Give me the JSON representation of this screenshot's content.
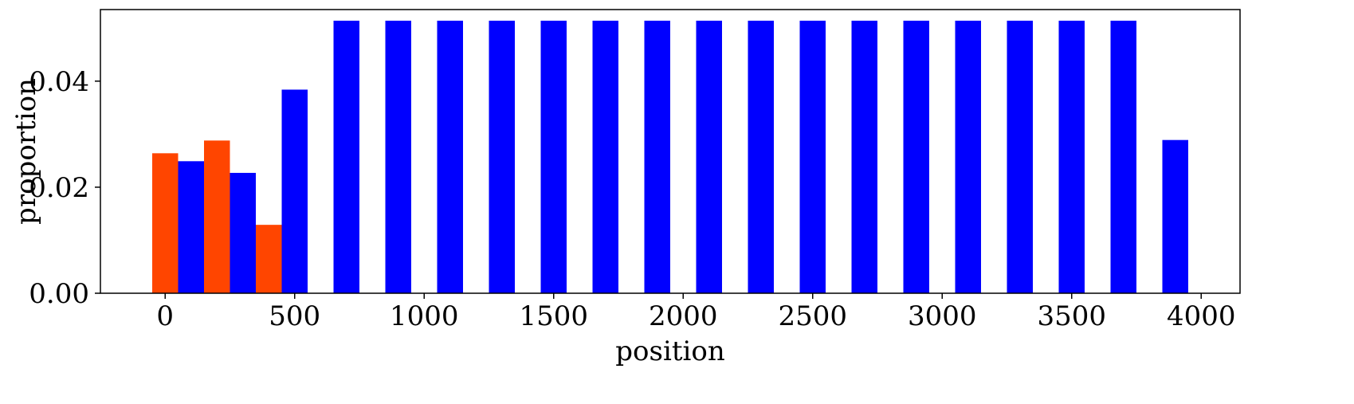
{
  "chart_data": {
    "type": "bar",
    "xlabel": "position",
    "ylabel": "proportion",
    "xlim": [
      -250,
      4150
    ],
    "ylim": [
      0,
      0.0535
    ],
    "xticks": [
      0,
      500,
      1000,
      1500,
      2000,
      2500,
      3000,
      3500,
      4000
    ],
    "xtick_labels": [
      "0",
      "500",
      "1000",
      "1500",
      "2000",
      "2500",
      "3000",
      "3500",
      "4000"
    ],
    "yticks": [
      0.0,
      0.02,
      0.04
    ],
    "ytick_labels": [
      "0.00",
      "0.02",
      "0.04"
    ],
    "grid": false,
    "legend": "none",
    "bar_width": 100,
    "series": [
      {
        "color": "#ff4500",
        "x": [
          0,
          200,
          400
        ],
        "values": [
          0.0264,
          0.0288,
          0.0129
        ]
      },
      {
        "color": "#0000ff",
        "x": [
          100,
          300,
          500,
          700,
          900,
          1100,
          1300,
          1500,
          1700,
          1900,
          2100,
          2300,
          2500,
          2700,
          2900,
          3100,
          3300,
          3500,
          3700,
          3900
        ],
        "values": [
          0.0249,
          0.0227,
          0.0384,
          0.0514,
          0.0514,
          0.0514,
          0.0514,
          0.0514,
          0.0514,
          0.0514,
          0.0514,
          0.0514,
          0.0514,
          0.0514,
          0.0514,
          0.0514,
          0.0514,
          0.0514,
          0.0514,
          0.0289
        ]
      }
    ]
  }
}
